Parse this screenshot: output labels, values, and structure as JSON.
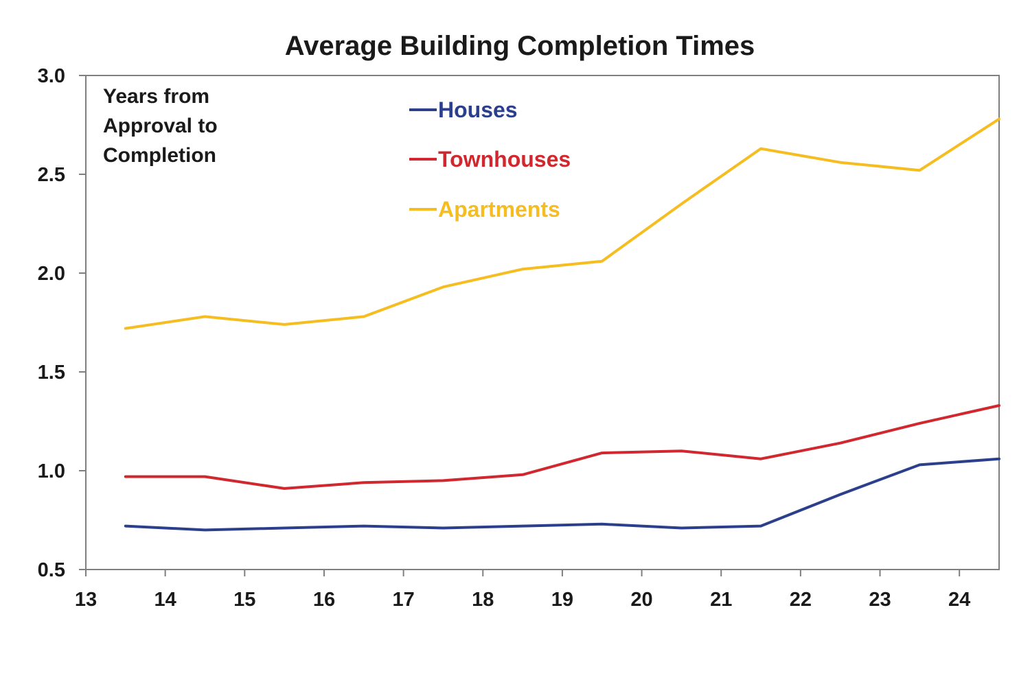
{
  "chart_data": {
    "type": "line",
    "title": "Average Building Completion Times",
    "annotation": [
      "Years from",
      "Approval to",
      "Completion"
    ],
    "xlabel": "",
    "ylabel": "",
    "x_ticks": [
      "13",
      "14",
      "15",
      "16",
      "17",
      "18",
      "19",
      "20",
      "21",
      "22",
      "23",
      "24"
    ],
    "xlim": [
      13,
      24.5
    ],
    "y_ticks": [
      "0.5",
      "1.0",
      "1.5",
      "2.0",
      "2.5",
      "3.0"
    ],
    "ylim": [
      0.5,
      3.0
    ],
    "grid": false,
    "legend_position": "top-center",
    "x": [
      13.5,
      14.5,
      15.5,
      16.5,
      17.5,
      18.5,
      19.5,
      20.5,
      21.5,
      22.5,
      23.5,
      24.5
    ],
    "series": [
      {
        "name": "Houses",
        "color": "#2b3f8c",
        "values": [
          0.72,
          0.7,
          0.71,
          0.72,
          0.71,
          0.72,
          0.73,
          0.71,
          0.72,
          0.88,
          1.03,
          1.06
        ]
      },
      {
        "name": "Townhouses",
        "color": "#d0282e",
        "values": [
          0.97,
          0.97,
          0.91,
          0.94,
          0.95,
          0.98,
          1.09,
          1.1,
          1.06,
          1.14,
          1.24,
          1.33
        ]
      },
      {
        "name": "Apartments",
        "color": "#f5bd1f",
        "values": [
          1.72,
          1.78,
          1.74,
          1.78,
          1.93,
          2.02,
          2.06,
          2.35,
          2.63,
          2.56,
          2.52,
          2.78
        ]
      }
    ]
  }
}
